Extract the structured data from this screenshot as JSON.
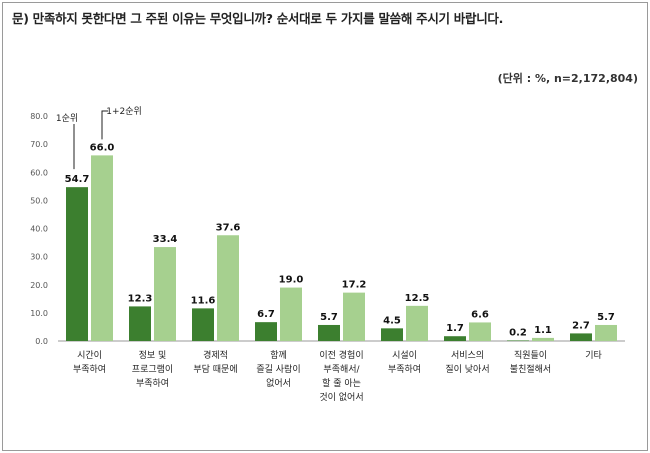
{
  "question": "문) 만족하지 못한다면 그 주된 이유는 무엇입니까? 순서대로 두 가지를 말씀해 주시기 바랍니다.",
  "unit": "(단위 : %, n=2,172,804)",
  "colors": {
    "series1": "#3c7f2f",
    "series2": "#a6d08f",
    "axis": "#999999"
  },
  "chart_data": {
    "type": "bar",
    "title": "",
    "xlabel": "",
    "ylabel": "",
    "ylim": [
      0,
      80
    ],
    "yticks": [
      "0.0",
      "10.0",
      "20.0",
      "30.0",
      "40.0",
      "50.0",
      "60.0",
      "70.0",
      "80.0"
    ],
    "ytick_values": [
      0,
      10,
      20,
      30,
      40,
      50,
      60,
      70,
      80
    ],
    "legend_placement": "top-left, callouts on first bar pair",
    "categories": [
      [
        "시간이",
        "부족하여"
      ],
      [
        "정보 및",
        "프로그램이",
        "부족하여"
      ],
      [
        "경제적",
        "부담 때문에"
      ],
      [
        "함께",
        "즐길 사람이",
        "없어서"
      ],
      [
        "이전 경험이",
        "부족해서/",
        "할 줄 아는",
        "것이 없어서"
      ],
      [
        "시설이",
        "부족하여"
      ],
      [
        "서비스의",
        "질이 낮아서"
      ],
      [
        "직원들이",
        "불친절해서"
      ],
      [
        "기타"
      ]
    ],
    "series": [
      {
        "name": "1순위",
        "values": [
          54.7,
          12.3,
          11.6,
          6.7,
          5.7,
          4.5,
          1.7,
          0.2,
          2.7
        ],
        "labels": [
          "54.7",
          "12.3",
          "11.6",
          "6.7",
          "5.7",
          "4.5",
          "1.7",
          "0.2",
          "2.7"
        ]
      },
      {
        "name": "1+2순위",
        "values": [
          66.0,
          33.4,
          37.6,
          19.0,
          17.2,
          12.5,
          6.6,
          1.1,
          5.7
        ],
        "labels": [
          "66.0",
          "33.4",
          "37.6",
          "19.0",
          "17.2",
          "12.5",
          "6.6",
          "1.1",
          "5.7"
        ]
      }
    ]
  }
}
